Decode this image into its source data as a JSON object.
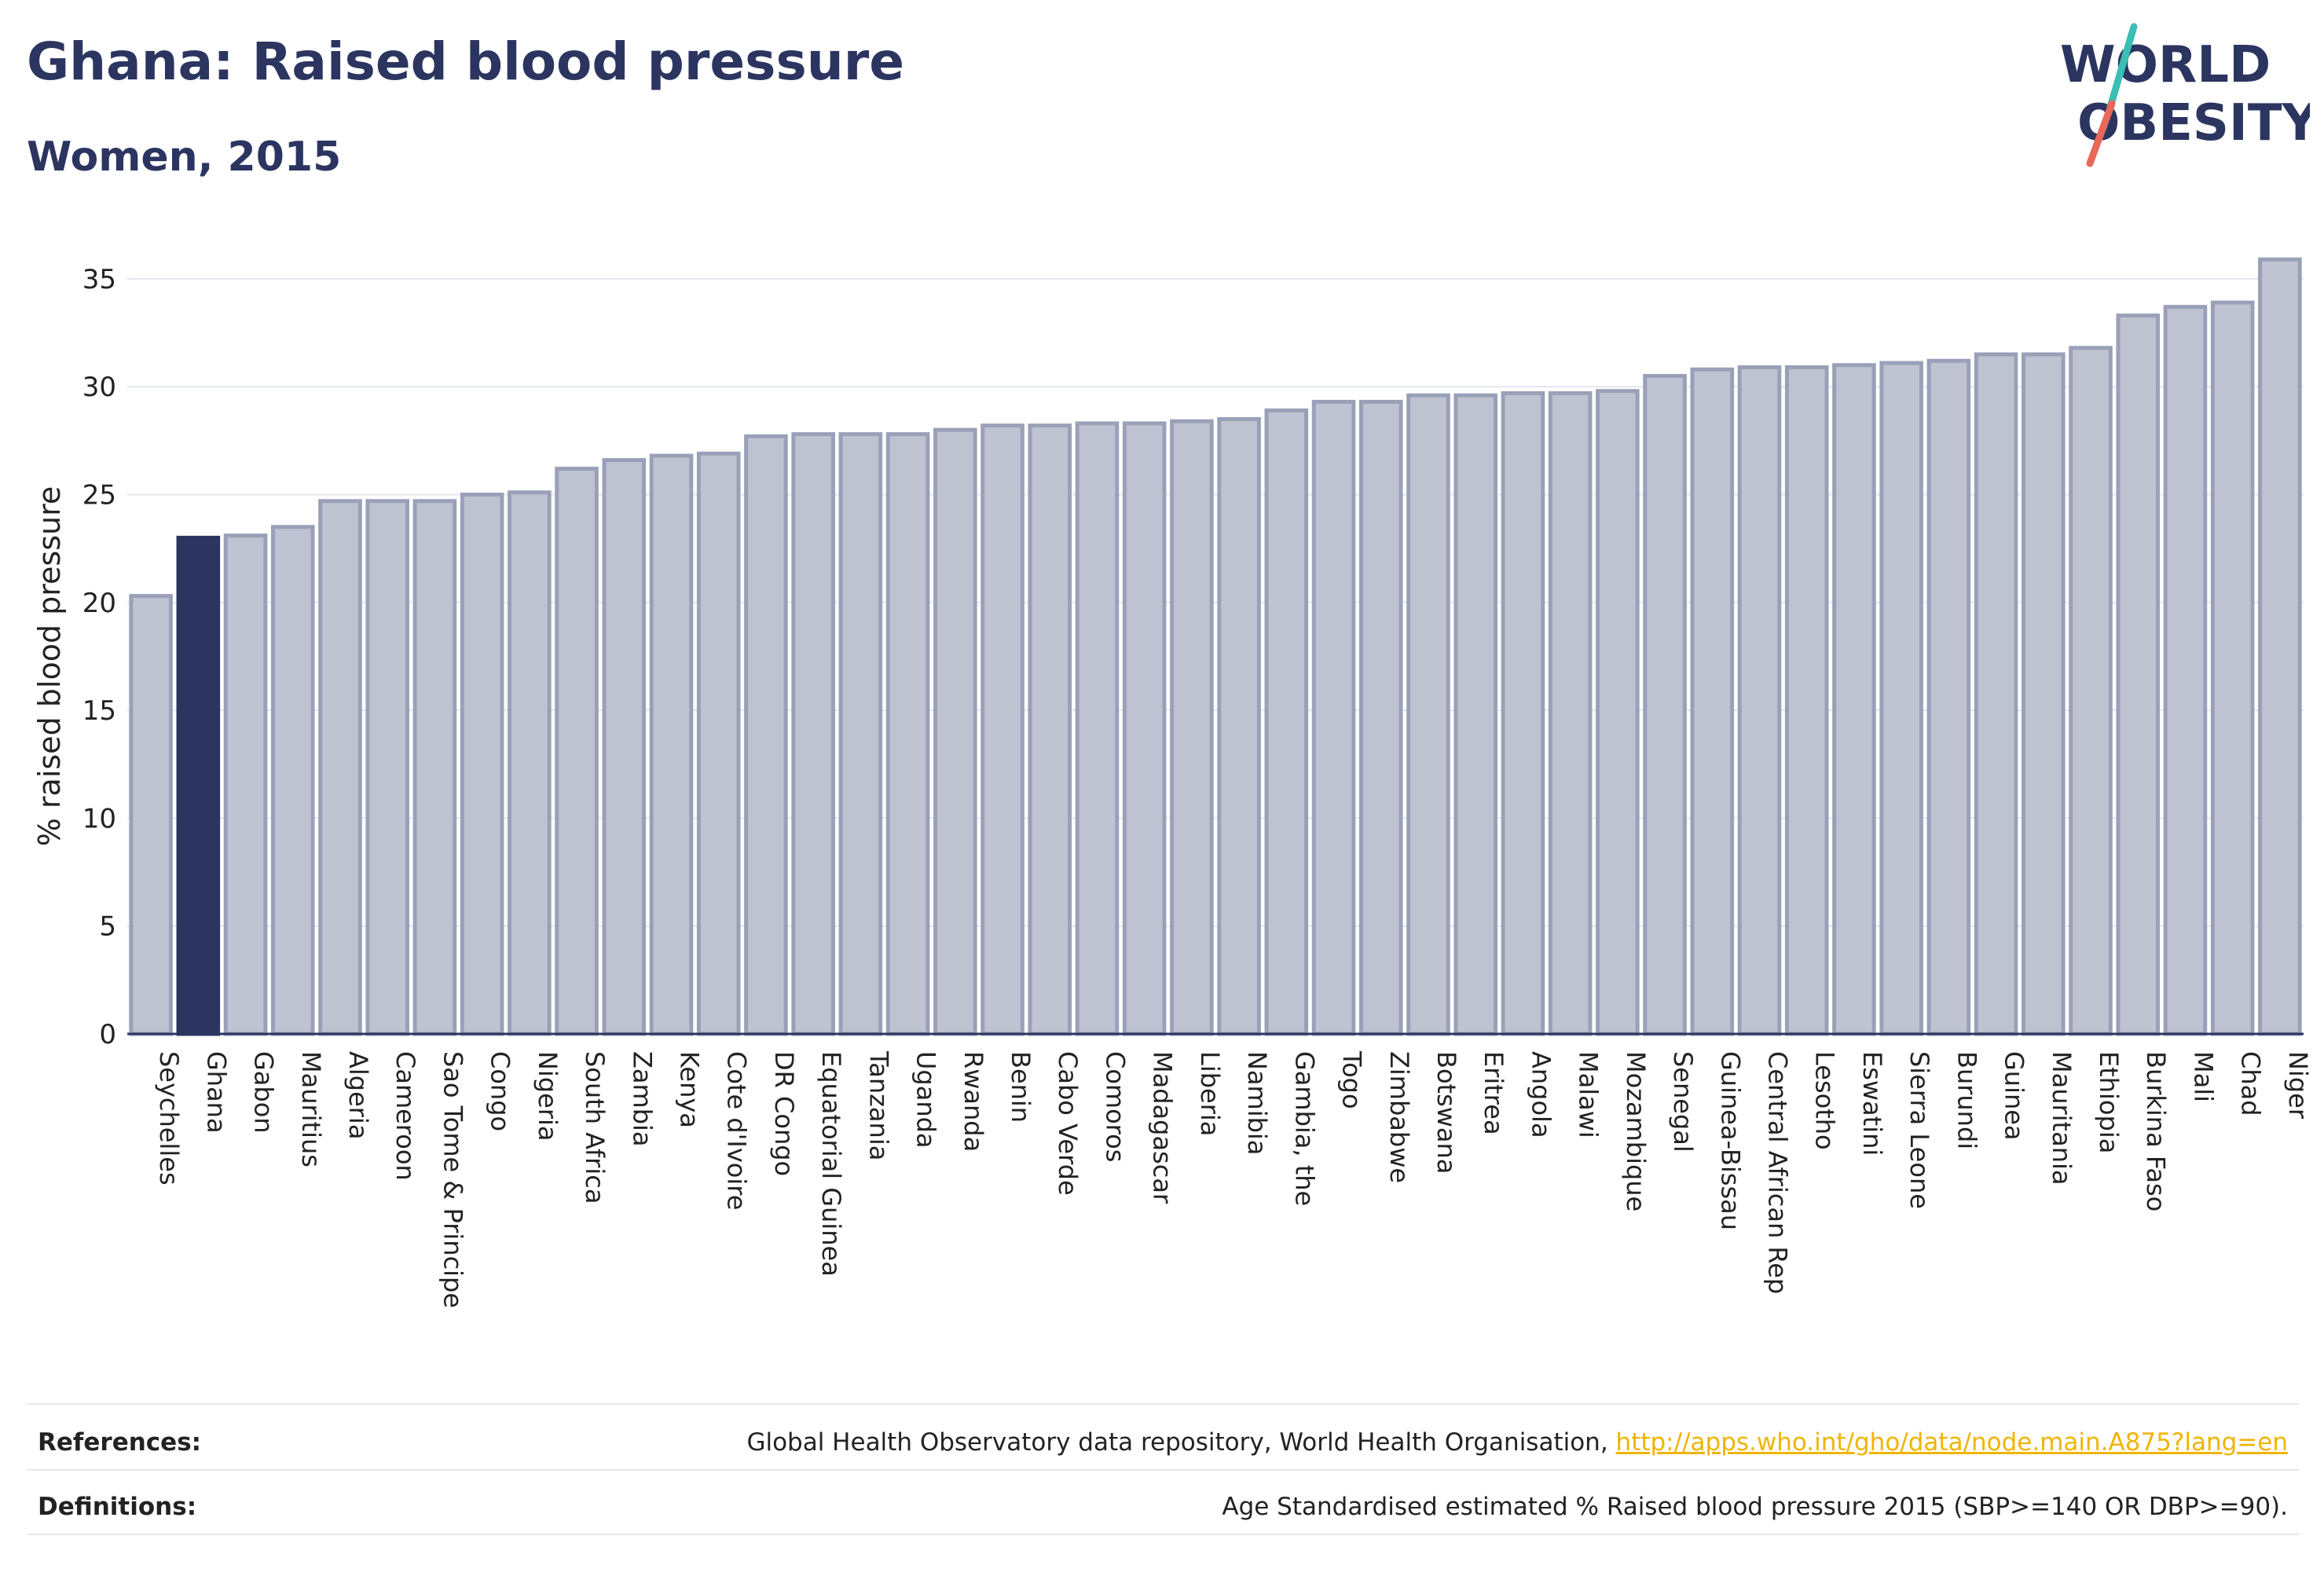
{
  "header": {
    "title": "Ghana: Raised blood pressure",
    "subtitle": "Women, 2015"
  },
  "logo": {
    "line1": "WORLD",
    "line2": "OBESITY",
    "colors": {
      "text": "#2b3560",
      "slash_top": "#3bbfb4",
      "slash_bottom": "#e8685a"
    }
  },
  "colors": {
    "highlight_bar": "#2b3560",
    "bar_fill": "#bfc3d1",
    "bar_stroke": "#9aa0b8",
    "grid": "#e4e6ee",
    "axis": "#2b3560",
    "link": "#f0b400"
  },
  "chart_data": {
    "type": "bar",
    "title": "Ghana: Raised blood pressure",
    "subtitle": "Women, 2015",
    "ylabel": "% raised blood pressure",
    "xlabel": "",
    "ylim": [
      0,
      37
    ],
    "yticks": [
      0,
      5,
      10,
      15,
      20,
      25,
      30,
      35
    ],
    "grid": true,
    "highlight": "Ghana",
    "categories": [
      "Seychelles",
      "Ghana",
      "Gabon",
      "Mauritius",
      "Algeria",
      "Cameroon",
      "Sao Tome & Principe",
      "Congo",
      "Nigeria",
      "South Africa",
      "Zambia",
      "Kenya",
      "Cote d'Ivoire",
      "DR Congo",
      "Equatorial Guinea",
      "Tanzania",
      "Uganda",
      "Rwanda",
      "Benin",
      "Cabo Verde",
      "Comoros",
      "Madagascar",
      "Liberia",
      "Namibia",
      "Gambia, the",
      "Togo",
      "Zimbabwe",
      "Botswana",
      "Eritrea",
      "Angola",
      "Malawi",
      "Mozambique",
      "Senegal",
      "Guinea-Bissau",
      "Central African Rep",
      "Lesotho",
      "Eswatini",
      "Sierra Leone",
      "Burundi",
      "Guinea",
      "Mauritania",
      "Ethiopia",
      "Burkina Faso",
      "Mali",
      "Chad",
      "Niger"
    ],
    "values": [
      20.3,
      23.0,
      23.1,
      23.5,
      24.7,
      24.7,
      24.7,
      25.0,
      25.1,
      26.2,
      26.6,
      26.8,
      26.9,
      27.7,
      27.8,
      27.8,
      27.8,
      28.0,
      28.2,
      28.2,
      28.3,
      28.3,
      28.4,
      28.5,
      28.9,
      29.3,
      29.3,
      29.6,
      29.6,
      29.7,
      29.7,
      29.8,
      30.5,
      30.8,
      30.9,
      30.9,
      31.0,
      31.1,
      31.2,
      31.5,
      31.5,
      31.8,
      33.3,
      33.7,
      33.9,
      35.9
    ]
  },
  "footer": {
    "references_label": "References:",
    "references_text": "Global Health Observatory data repository, World Health Organisation, ",
    "references_link": "http://apps.who.int/gho/data/node.main.A875?lang=en",
    "definitions_label": "Definitions:",
    "definitions_text": "Age Standardised estimated % Raised blood pressure 2015 (SBP>=140 OR DBP>=90)."
  }
}
